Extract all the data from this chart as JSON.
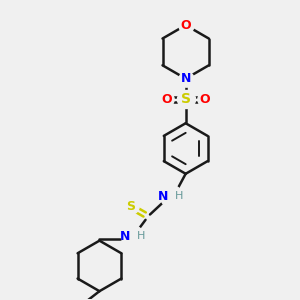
{
  "bg_color": "#f0f0f0",
  "bond_color": "#1a1a1a",
  "N_color": "#0000ff",
  "O_color": "#ff0000",
  "S_color": "#cccc00",
  "NH_color": "#669999",
  "figsize": [
    3.0,
    3.0
  ],
  "dpi": 100,
  "xlim": [
    0,
    10
  ],
  "ylim": [
    0,
    10
  ]
}
